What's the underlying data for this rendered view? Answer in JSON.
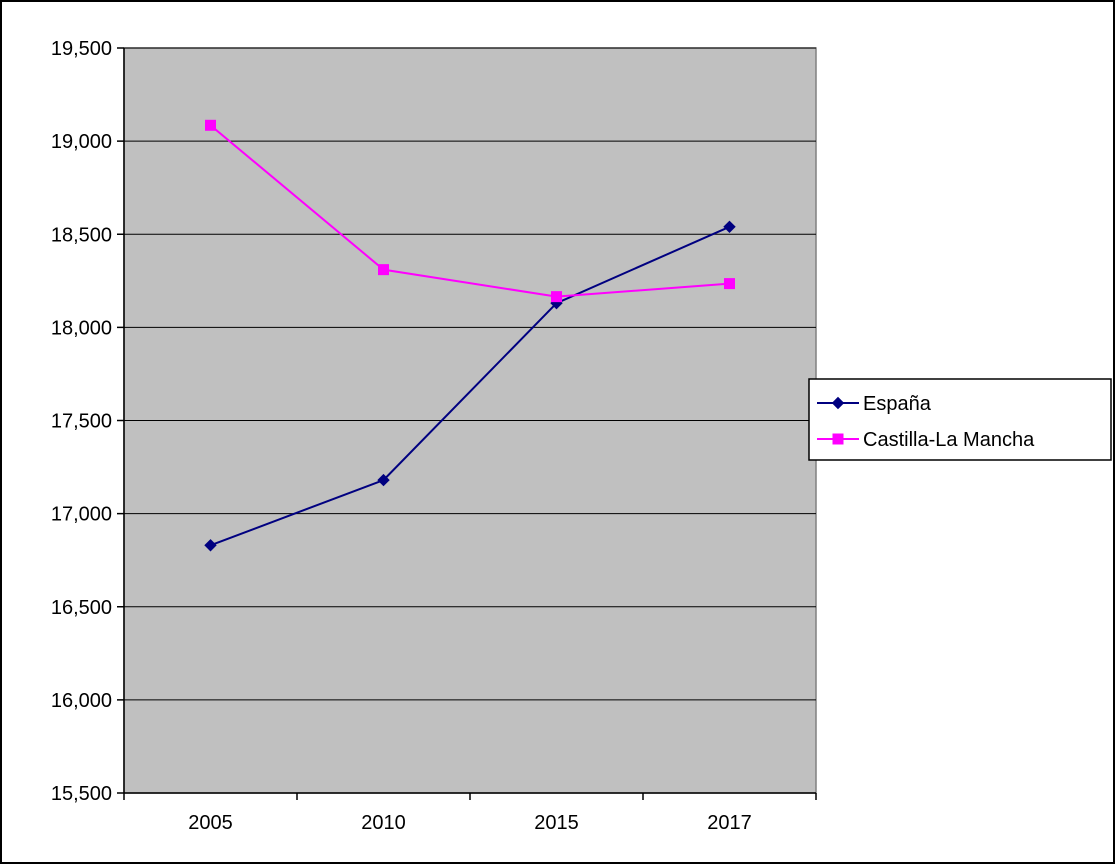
{
  "chart_data": {
    "type": "line",
    "title": "",
    "xlabel": "",
    "ylabel": "",
    "categories": [
      "2005",
      "2010",
      "2015",
      "2017"
    ],
    "y_tick_labels": [
      "15,500",
      "16,000",
      "16,500",
      "17,000",
      "17,500",
      "18,000",
      "18,500",
      "19,000",
      "19,500"
    ],
    "ylim": [
      15500,
      19500
    ],
    "y_tick_step": 500,
    "grid": true,
    "legend_position": "right",
    "plot_background": "#c0c0c0",
    "series": [
      {
        "name": "España",
        "color": "#000080",
        "marker": "diamond",
        "values": [
          16830,
          17180,
          18130,
          18540
        ]
      },
      {
        "name": "Castilla-La Mancha",
        "color": "#ff00ff",
        "marker": "square",
        "values": [
          19085,
          18310,
          18165,
          18235
        ]
      }
    ]
  }
}
